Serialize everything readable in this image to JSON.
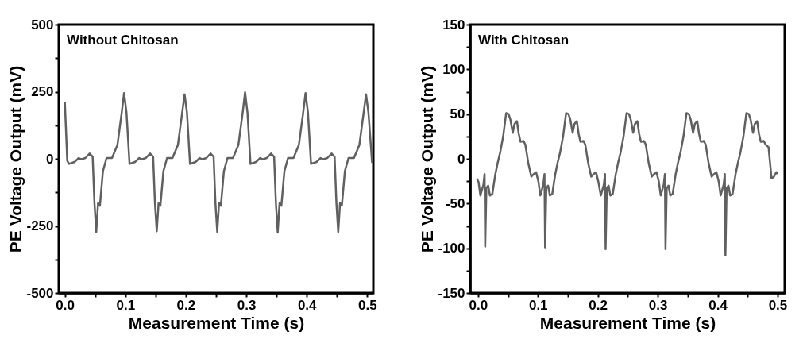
{
  "chart_data": [
    {
      "type": "line",
      "annotations": [
        "Without Chitosan"
      ],
      "xlabel": "Measurement Time (s)",
      "ylabel": "PE Voltage Output (mV)",
      "xlim": [
        -0.01,
        0.51
      ],
      "ylim": [
        -500,
        500
      ],
      "xticks": [
        {
          "value": 0,
          "label": "0.0"
        },
        {
          "value": 0.05,
          "label": null
        },
        0.1,
        {
          "value": 0.15,
          "label": null
        },
        0.2,
        {
          "value": 0.25,
          "label": null
        },
        0.3,
        {
          "value": 0.35,
          "label": null
        },
        0.4,
        {
          "value": 0.45,
          "label": null
        },
        0.5
      ],
      "yticks": [
        -500,
        {
          "value": -375,
          "label": null
        },
        -250,
        {
          "value": -125,
          "label": null
        },
        0,
        {
          "value": 125,
          "label": null
        },
        250,
        {
          "value": 375,
          "label": null
        },
        500
      ],
      "series": [
        {
          "color": "#606060",
          "x": [
            0.0,
            0.004,
            0.007,
            0.016,
            0.023,
            0.027,
            0.034,
            0.041,
            0.046,
            0.049,
            0.052,
            0.055,
            0.058,
            0.063,
            0.069,
            0.078,
            0.087,
            0.094,
            0.098,
            0.102,
            0.107,
            0.116,
            0.123,
            0.127,
            0.134,
            0.141,
            0.146,
            0.149,
            0.152,
            0.155,
            0.158,
            0.163,
            0.169,
            0.178,
            0.187,
            0.194,
            0.198,
            0.202,
            0.207,
            0.216,
            0.223,
            0.227,
            0.234,
            0.241,
            0.246,
            0.249,
            0.252,
            0.255,
            0.258,
            0.263,
            0.269,
            0.278,
            0.287,
            0.294,
            0.298,
            0.302,
            0.307,
            0.316,
            0.323,
            0.327,
            0.334,
            0.341,
            0.346,
            0.349,
            0.352,
            0.355,
            0.358,
            0.363,
            0.369,
            0.378,
            0.387,
            0.394,
            0.398,
            0.402,
            0.407,
            0.416,
            0.423,
            0.427,
            0.434,
            0.441,
            0.446,
            0.449,
            0.452,
            0.455,
            0.458,
            0.463,
            0.469,
            0.478,
            0.487,
            0.494,
            0.498,
            0.502,
            0.508
          ],
          "values": [
            212,
            -7,
            -19,
            -12,
            3,
            -2,
            3,
            20,
            8,
            -165,
            -273,
            -165,
            -175,
            -46,
            3,
            3,
            52,
            171,
            245,
            171,
            -19,
            -12,
            3,
            -2,
            3,
            20,
            8,
            -165,
            -270,
            -165,
            -175,
            -46,
            3,
            3,
            52,
            171,
            240,
            171,
            -19,
            -12,
            3,
            -2,
            3,
            20,
            8,
            -165,
            -273,
            -165,
            -175,
            -46,
            3,
            3,
            52,
            171,
            248,
            171,
            -19,
            -12,
            3,
            -2,
            3,
            20,
            8,
            -165,
            -275,
            -165,
            -175,
            -46,
            3,
            3,
            52,
            171,
            245,
            171,
            -19,
            -12,
            3,
            -2,
            3,
            20,
            8,
            -165,
            -273,
            -165,
            -175,
            -46,
            3,
            3,
            52,
            171,
            240,
            171,
            -15
          ]
        }
      ]
    },
    {
      "type": "line",
      "annotations": [
        "With Chitosan"
      ],
      "xlabel": "Measurement Time (s)",
      "ylabel": "PE Voltage Output (mV)",
      "xlim": [
        -0.013,
        0.512
      ],
      "ylim": [
        -150,
        150
      ],
      "xticks": [
        {
          "value": 0,
          "label": "0.0"
        },
        {
          "value": 0.05,
          "label": null
        },
        0.1,
        {
          "value": 0.15,
          "label": null
        },
        0.2,
        {
          "value": 0.25,
          "label": null
        },
        0.3,
        {
          "value": 0.35,
          "label": null
        },
        0.4,
        {
          "value": 0.45,
          "label": null
        },
        0.5
      ],
      "yticks": [
        -150,
        {
          "value": -125,
          "label": null
        },
        -100,
        {
          "value": -75,
          "label": null
        },
        -50,
        {
          "value": -25,
          "label": null
        },
        0,
        {
          "value": 25,
          "label": null
        },
        50,
        {
          "value": 75,
          "label": null
        },
        100,
        {
          "value": 125,
          "label": null
        },
        150
      ],
      "series": [
        {
          "color": "#606060",
          "x": [
            -0.002,
            0.001,
            0.004,
            0.009,
            0.011,
            0.012,
            0.014,
            0.017,
            0.02,
            0.024,
            0.029,
            0.033,
            0.037,
            0.042,
            0.047,
            0.051,
            0.054,
            0.058,
            0.061,
            0.065,
            0.068,
            0.071,
            0.076,
            0.079,
            0.084,
            0.089,
            0.093,
            0.097,
            0.101,
            0.104,
            0.109,
            0.111,
            0.112,
            0.114,
            0.117,
            0.12,
            0.124,
            0.129,
            0.133,
            0.137,
            0.142,
            0.147,
            0.151,
            0.154,
            0.158,
            0.161,
            0.165,
            0.168,
            0.171,
            0.176,
            0.179,
            0.184,
            0.189,
            0.193,
            0.197,
            0.201,
            0.205,
            0.21,
            0.212,
            0.213,
            0.215,
            0.218,
            0.221,
            0.225,
            0.23,
            0.234,
            0.238,
            0.243,
            0.248,
            0.252,
            0.255,
            0.259,
            0.262,
            0.266,
            0.269,
            0.272,
            0.277,
            0.28,
            0.285,
            0.29,
            0.294,
            0.298,
            0.302,
            0.305,
            0.31,
            0.312,
            0.313,
            0.315,
            0.318,
            0.321,
            0.325,
            0.33,
            0.334,
            0.338,
            0.343,
            0.348,
            0.352,
            0.355,
            0.359,
            0.362,
            0.366,
            0.369,
            0.372,
            0.377,
            0.38,
            0.385,
            0.39,
            0.394,
            0.398,
            0.402,
            0.405,
            0.41,
            0.412,
            0.413,
            0.415,
            0.418,
            0.421,
            0.425,
            0.43,
            0.434,
            0.438,
            0.443,
            0.448,
            0.452,
            0.455,
            0.459,
            0.462,
            0.466,
            0.469,
            0.472,
            0.477,
            0.48,
            0.485,
            0.49,
            0.494,
            0.498,
            0.5
          ],
          "values": [
            -22,
            -26,
            -41,
            -29,
            -17,
            -98,
            -33,
            -30,
            -41,
            -39,
            -17,
            -4,
            7,
            25,
            51,
            50,
            44,
            29,
            39,
            42,
            28,
            19,
            20,
            16,
            -5,
            -20,
            -17,
            -15,
            -26,
            -41,
            -29,
            -17,
            -99,
            -33,
            -30,
            -41,
            -39,
            -17,
            -4,
            7,
            25,
            51,
            50,
            44,
            29,
            39,
            42,
            28,
            19,
            20,
            16,
            -5,
            -20,
            -17,
            -15,
            -26,
            -41,
            -29,
            -17,
            -101,
            -33,
            -30,
            -41,
            -39,
            -17,
            -4,
            7,
            25,
            51,
            50,
            44,
            29,
            39,
            42,
            28,
            19,
            20,
            16,
            -5,
            -20,
            -17,
            -15,
            -26,
            -41,
            -29,
            -17,
            -101,
            -33,
            -30,
            -41,
            -39,
            -17,
            -4,
            7,
            25,
            51,
            50,
            44,
            29,
            39,
            42,
            28,
            19,
            20,
            16,
            -5,
            -20,
            -17,
            -15,
            -26,
            -41,
            -29,
            -17,
            -108,
            -33,
            -30,
            -41,
            -39,
            -17,
            -4,
            7,
            25,
            51,
            50,
            44,
            29,
            39,
            42,
            28,
            19,
            20,
            16,
            13,
            -22,
            -20,
            -15,
            -17
          ]
        }
      ]
    }
  ]
}
